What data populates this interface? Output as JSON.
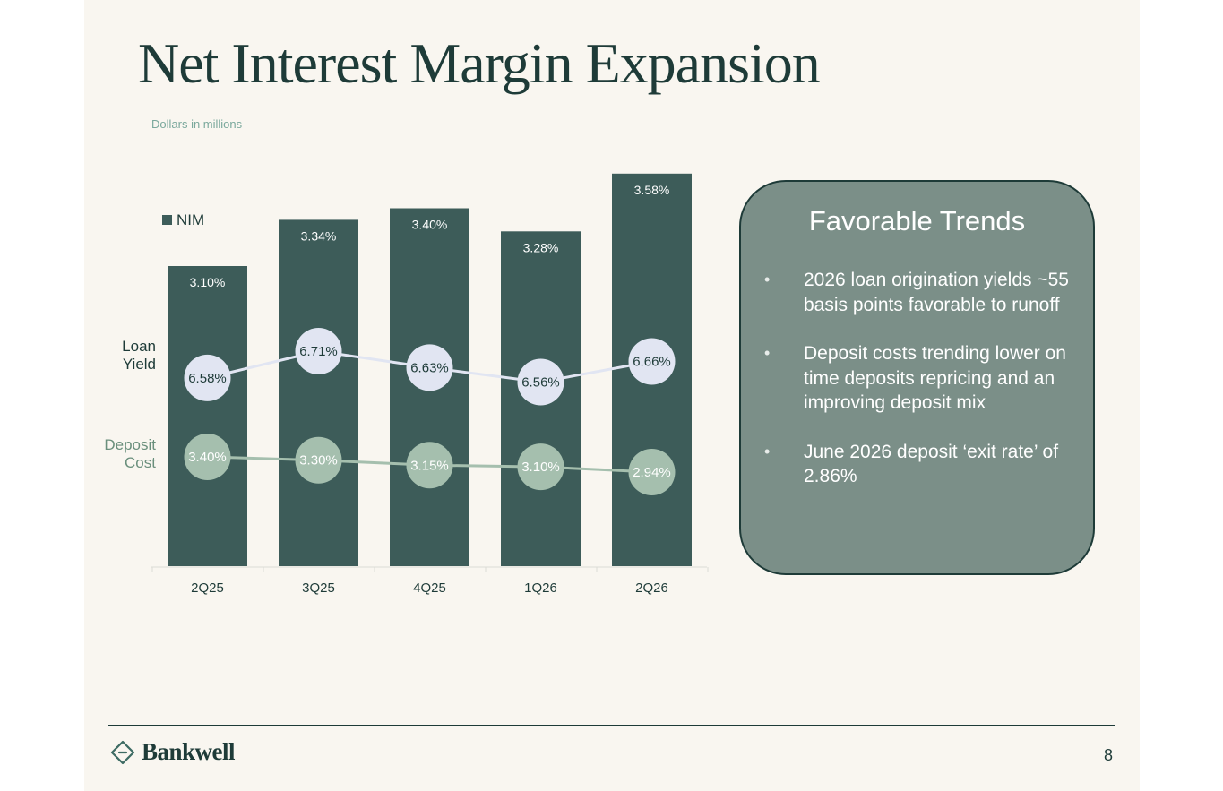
{
  "page": {
    "title": "Net Interest Margin Expansion",
    "subtitle": "Dollars in millions",
    "page_number": "8"
  },
  "logo": {
    "text": "Bankwell"
  },
  "panel": {
    "title": "Favorable Trends",
    "bullets": [
      "2026 loan origination yields ~55 basis points favorable to runoff",
      "Deposit costs trending lower on time deposits repricing and an improving deposit mix",
      "June 2026 deposit ‘exit rate’ of 2.86%"
    ]
  },
  "colors": {
    "bar": "#3d5c59",
    "loan_marker": "#e1e5f2",
    "deposit_marker": "#a5bfae",
    "title": "#1e3b38",
    "deposit_label": "#6a8f7c",
    "panel": "#7b8f88"
  },
  "chart_data": {
    "type": "bar",
    "categories": [
      "2Q25",
      "3Q25",
      "4Q25",
      "1Q26",
      "2Q26"
    ],
    "legend": "NIM",
    "legend_position": "top-left",
    "series": [
      {
        "name": "NIM",
        "type": "bar",
        "values": [
          3.1,
          3.34,
          3.4,
          3.28,
          3.58
        ],
        "labels": [
          "3.10%",
          "3.34%",
          "3.40%",
          "3.28%",
          "3.58%"
        ]
      },
      {
        "name": "Loan Yield",
        "type": "line",
        "values": [
          6.58,
          6.71,
          6.63,
          6.56,
          6.66
        ],
        "labels": [
          "6.58%",
          "6.71%",
          "6.63%",
          "6.56%",
          "6.66%"
        ]
      },
      {
        "name": "Deposit Cost",
        "type": "line",
        "values": [
          3.4,
          3.3,
          3.15,
          3.1,
          2.94
        ],
        "labels": [
          "3.40%",
          "3.30%",
          "3.15%",
          "3.10%",
          "2.94%"
        ]
      }
    ],
    "row_labels": {
      "loan": [
        "Loan",
        "Yield"
      ],
      "deposit": [
        "Deposit",
        "Cost"
      ]
    },
    "grid": false
  }
}
